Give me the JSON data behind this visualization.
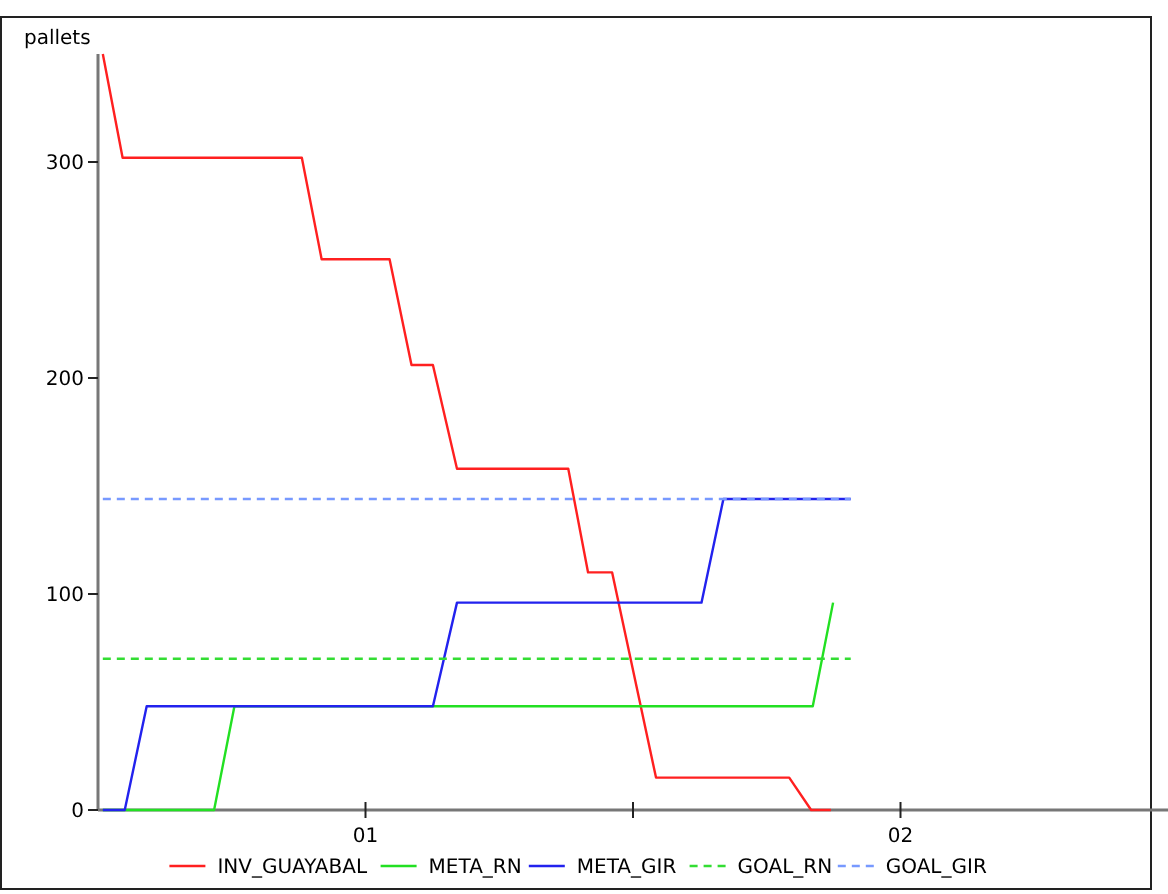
{
  "chart_data": {
    "type": "line",
    "ylabel": "pallets",
    "xlim": [
      0.5,
      2.5
    ],
    "ylim": [
      0,
      350
    ],
    "xticks": [
      {
        "value": 1,
        "label": "01"
      },
      {
        "value": 1.5,
        "label": null
      },
      {
        "value": 2,
        "label": "02"
      }
    ],
    "yticks": [
      0,
      100,
      200,
      300
    ],
    "legend": "bottom",
    "grid": false,
    "series": [
      {
        "name": "INV_GUAYABAL",
        "color": "#ff2020",
        "x": [
          0.509,
          0.546,
          0.881,
          0.918,
          1.045,
          1.086,
          1.126,
          1.171,
          1.379,
          1.416,
          1.461,
          1.543,
          1.792,
          1.833,
          1.87
        ],
        "values": [
          350,
          302,
          302,
          255,
          255,
          206,
          206,
          158,
          158,
          110,
          110,
          15,
          15,
          0,
          0
        ]
      },
      {
        "name": "META_RN",
        "color": "#22e022",
        "x": [
          0.509,
          0.717,
          0.755,
          1.836,
          1.874
        ],
        "values": [
          0,
          0,
          48,
          48,
          96
        ]
      },
      {
        "name": "META_GIR",
        "color": "#2222ee",
        "x": [
          0.509,
          0.55,
          0.591,
          1.126,
          1.171,
          1.628,
          1.669,
          1.907
        ],
        "values": [
          0,
          0,
          48,
          48,
          96,
          96,
          144,
          144
        ]
      },
      {
        "name": "GOAL_RN",
        "color": "#33dd33",
        "line_style": "dashed",
        "x": [
          0.509,
          1.907
        ],
        "values": [
          70,
          70
        ]
      },
      {
        "name": "GOAL_GIR",
        "color": "#7799ff",
        "line_style": "dashed",
        "x": [
          0.509,
          1.907
        ],
        "values": [
          144,
          144
        ]
      }
    ]
  }
}
